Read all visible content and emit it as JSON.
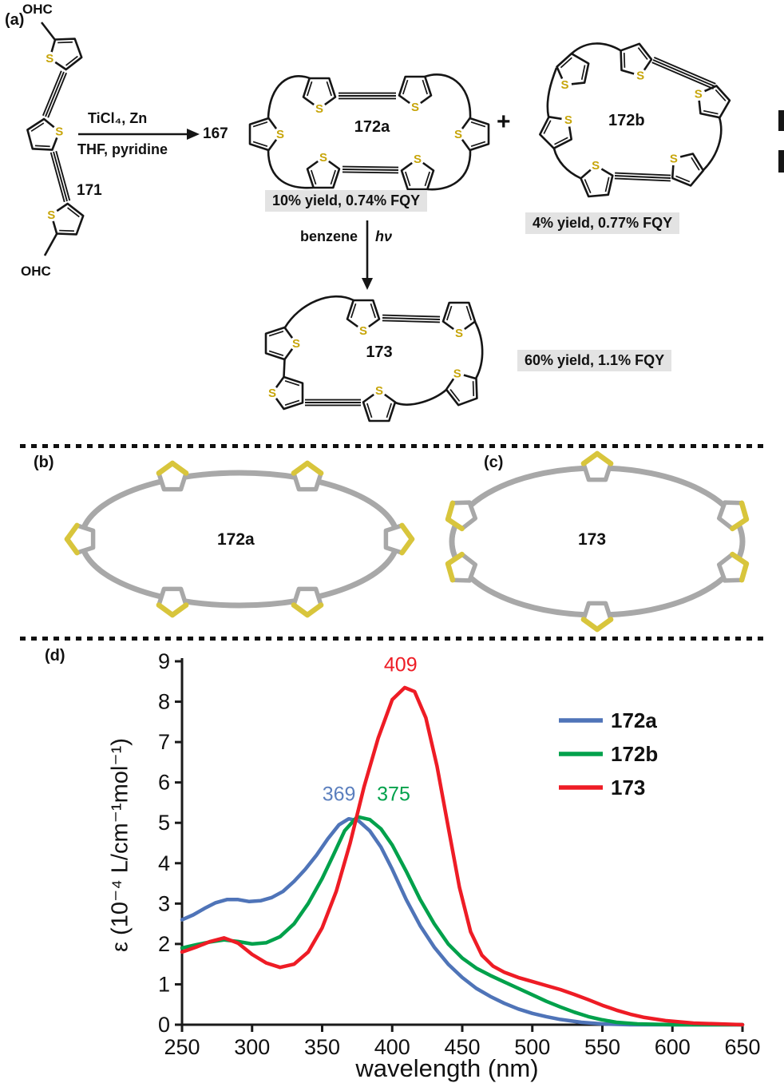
{
  "atoms": {
    "sulfur": "S"
  },
  "panel_a": {
    "label": "(a)",
    "aldehyde_top": "OHC",
    "aldehyde_bottom": "OHC",
    "compound_171": "171",
    "arrow_conditions_line1": "TiCl₄, Zn",
    "arrow_conditions_line2": "THF, pyridine",
    "compound_167": "167",
    "compound_172a": "172a",
    "yield_172a": "10% yield, 0.74% FQY",
    "plus_sign": "+",
    "compound_172b": "172b",
    "yield_172b": "4% yield, 0.77% FQY",
    "photo_solvent": "benzene",
    "photo_light": "hν",
    "compound_173": "173",
    "yield_173": "60% yield, 1.1% FQY"
  },
  "panel_b": {
    "label": "(b)",
    "compound": "172a"
  },
  "panel_c": {
    "label": "(c)",
    "compound": "173"
  },
  "panel_d": {
    "label": "(d)"
  },
  "chart_data": {
    "type": "line",
    "title": "",
    "xlabel": "wavelength (nm)",
    "ylabel": "ε (10⁻⁴ L/cm⁻¹mol⁻¹)",
    "xlim": [
      250,
      650
    ],
    "ylim": [
      0,
      9
    ],
    "x_ticks": [
      250,
      300,
      350,
      400,
      450,
      500,
      550,
      600,
      650
    ],
    "y_ticks": [
      0,
      1,
      2,
      3,
      4,
      5,
      6,
      7,
      8,
      9
    ],
    "grid": false,
    "legend_position": "top-right",
    "series": [
      {
        "name": "172a",
        "color": "#4f74b8",
        "peak_nm": 369,
        "peak_eps": 5.1,
        "x": [
          250,
          258,
          266,
          274,
          282,
          290,
          298,
          306,
          314,
          322,
          330,
          338,
          346,
          354,
          362,
          369,
          376,
          384,
          392,
          400,
          410,
          420,
          430,
          440,
          450,
          460,
          470,
          480,
          490,
          500,
          510,
          520,
          535,
          550,
          570,
          650
        ],
        "y": [
          2.6,
          2.72,
          2.88,
          3.02,
          3.1,
          3.1,
          3.05,
          3.07,
          3.15,
          3.3,
          3.55,
          3.85,
          4.2,
          4.6,
          4.95,
          5.1,
          5.05,
          4.8,
          4.4,
          3.85,
          3.1,
          2.45,
          1.92,
          1.5,
          1.17,
          0.9,
          0.7,
          0.53,
          0.39,
          0.28,
          0.2,
          0.13,
          0.06,
          0.02,
          0.0,
          0.0
        ]
      },
      {
        "name": "172b",
        "color": "#00a14b",
        "peak_nm": 375,
        "peak_eps": 5.15,
        "x": [
          250,
          260,
          270,
          280,
          290,
          300,
          310,
          320,
          330,
          340,
          350,
          358,
          366,
          375,
          384,
          392,
          400,
          410,
          420,
          430,
          440,
          450,
          460,
          470,
          480,
          490,
          500,
          510,
          520,
          530,
          540,
          550,
          560,
          575,
          600,
          650
        ],
        "y": [
          1.9,
          1.98,
          2.05,
          2.1,
          2.06,
          2.0,
          2.03,
          2.18,
          2.5,
          3.0,
          3.62,
          4.2,
          4.8,
          5.15,
          5.08,
          4.85,
          4.45,
          3.8,
          3.1,
          2.5,
          2.0,
          1.65,
          1.4,
          1.22,
          1.06,
          0.9,
          0.74,
          0.58,
          0.44,
          0.31,
          0.2,
          0.12,
          0.06,
          0.02,
          0.0,
          0.0
        ]
      },
      {
        "name": "173",
        "color": "#ee1c25",
        "peak_nm": 409,
        "peak_eps": 8.35,
        "x": [
          250,
          260,
          270,
          280,
          290,
          300,
          310,
          320,
          330,
          340,
          350,
          360,
          370,
          380,
          390,
          400,
          409,
          416,
          424,
          432,
          440,
          448,
          456,
          464,
          472,
          480,
          490,
          500,
          510,
          520,
          530,
          540,
          550,
          560,
          570,
          580,
          595,
          615,
          650
        ],
        "y": [
          1.8,
          1.92,
          2.06,
          2.15,
          2.02,
          1.74,
          1.53,
          1.42,
          1.5,
          1.8,
          2.4,
          3.3,
          4.5,
          5.9,
          7.1,
          8.05,
          8.35,
          8.25,
          7.6,
          6.4,
          4.9,
          3.4,
          2.3,
          1.72,
          1.45,
          1.3,
          1.17,
          1.07,
          0.97,
          0.87,
          0.75,
          0.62,
          0.48,
          0.36,
          0.26,
          0.18,
          0.1,
          0.04,
          0.0
        ]
      }
    ],
    "annotations": [
      {
        "text": "369",
        "x": 362,
        "y": 5.55,
        "color": "#5b7fbe"
      },
      {
        "text": "375",
        "x": 401,
        "y": 5.55,
        "color": "#00a14b"
      },
      {
        "text": "409",
        "x": 406,
        "y": 8.75,
        "color": "#ee1c25"
      }
    ]
  }
}
